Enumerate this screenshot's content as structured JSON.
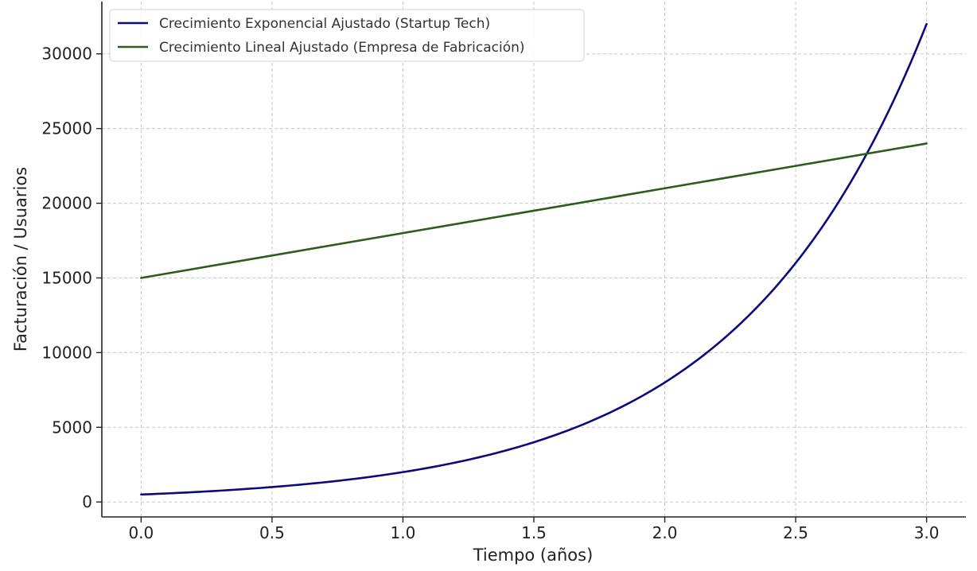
{
  "chart_data": {
    "type": "line",
    "title": "",
    "xlabel": "Tiempo (años)",
    "ylabel": "Facturación / Usuarios",
    "xlim": [
      -0.15,
      3.15
    ],
    "ylim": [
      -1000,
      33500
    ],
    "x_ticks": [
      0.0,
      0.5,
      1.0,
      1.5,
      2.0,
      2.5,
      3.0
    ],
    "x_tick_labels": [
      "0.0",
      "0.5",
      "1.0",
      "1.5",
      "2.0",
      "2.5",
      "3.0"
    ],
    "y_ticks": [
      0,
      5000,
      10000,
      15000,
      20000,
      25000,
      30000
    ],
    "y_tick_labels": [
      "0",
      "5000",
      "10000",
      "15000",
      "20000",
      "25000",
      "30000"
    ],
    "grid": true,
    "legend_position": "top-left",
    "series": [
      {
        "name": "Crecimiento Exponencial Ajustado (Startup Tech)",
        "color": "#0b0b7a",
        "x": [
          0.0,
          0.25,
          0.5,
          0.75,
          1.0,
          1.25,
          1.5,
          1.75,
          2.0,
          2.25,
          2.5,
          2.75,
          3.0
        ],
        "y": [
          500,
          707,
          1000,
          1414,
          2000,
          2828,
          4000,
          5657,
          8000,
          11314,
          16000,
          22627,
          32000
        ]
      },
      {
        "name": "Crecimiento Lineal Ajustado (Empresa de Fabricación)",
        "color": "#2a5e1a",
        "x": [
          0.0,
          0.5,
          1.0,
          1.5,
          2.0,
          2.5,
          3.0
        ],
        "y": [
          15000,
          16500,
          18000,
          19500,
          21000,
          22500,
          24000
        ]
      }
    ]
  }
}
